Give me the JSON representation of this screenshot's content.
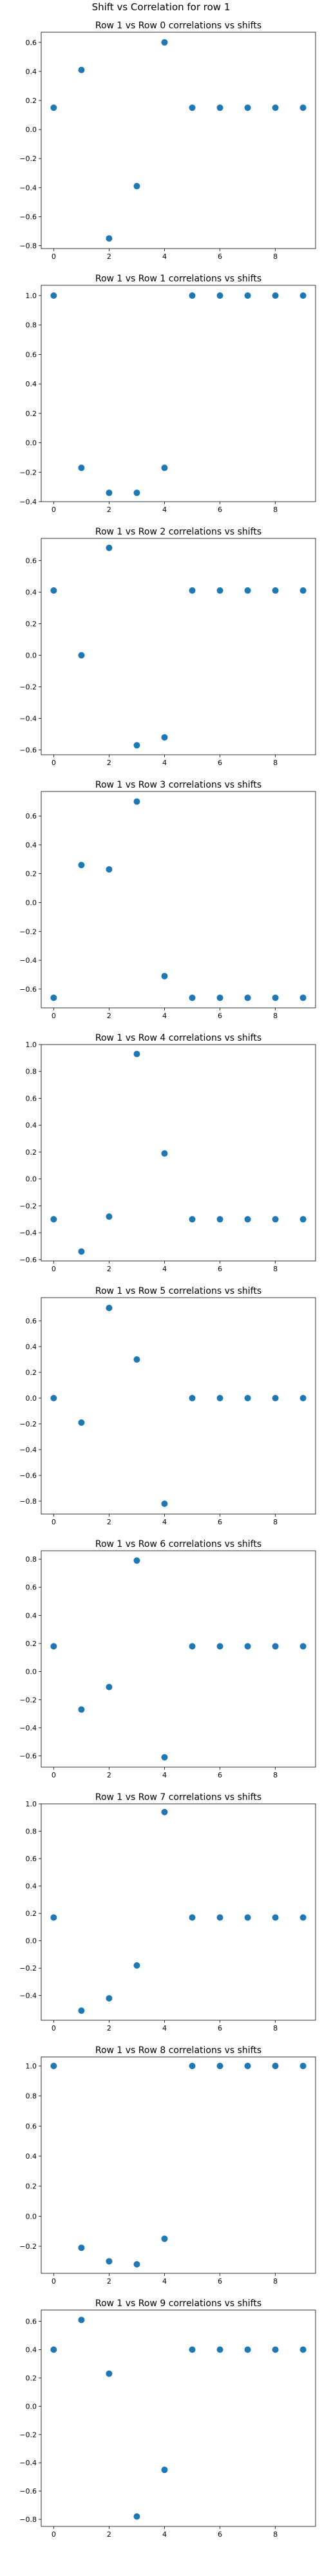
{
  "figure": {
    "suptitle": "Shift vs Correlation for row 1",
    "point_color": "#1f77b4"
  },
  "chart_data": [
    {
      "type": "scatter",
      "title": "Row 1 vs Row 0 correlations vs shifts",
      "x": [
        0,
        1,
        2,
        3,
        4,
        5,
        6,
        7,
        8,
        9
      ],
      "y": [
        0.15,
        0.41,
        -0.75,
        -0.39,
        0.6,
        0.15,
        0.15,
        0.15,
        0.15,
        0.15
      ],
      "xlim": [
        -0.45,
        9.45
      ],
      "ylim": [
        -0.82,
        0.67
      ],
      "xticks": [
        0,
        2,
        4,
        6,
        8
      ],
      "yticks": [
        -0.8,
        -0.6,
        -0.4,
        -0.2,
        0.0,
        0.2,
        0.4,
        0.6
      ],
      "tick_decimals": 1
    },
    {
      "type": "scatter",
      "title": "Row 1 vs Row 1 correlations vs shifts",
      "x": [
        0,
        1,
        2,
        3,
        4,
        5,
        6,
        7,
        8,
        9
      ],
      "y": [
        1.0,
        -0.17,
        -0.34,
        -0.34,
        -0.17,
        1.0,
        1.0,
        1.0,
        1.0,
        1.0
      ],
      "xlim": [
        -0.45,
        9.45
      ],
      "ylim": [
        -0.4,
        1.07
      ],
      "xticks": [
        0,
        2,
        4,
        6,
        8
      ],
      "yticks": [
        -0.4,
        -0.2,
        0.0,
        0.2,
        0.4,
        0.6,
        0.8,
        1.0
      ],
      "tick_decimals": 1
    },
    {
      "type": "scatter",
      "title": "Row 1 vs Row 2 correlations vs shifts",
      "x": [
        0,
        1,
        2,
        3,
        4,
        5,
        6,
        7,
        8,
        9
      ],
      "y": [
        0.41,
        0.0,
        0.68,
        -0.57,
        -0.52,
        0.41,
        0.41,
        0.41,
        0.41,
        0.41
      ],
      "xlim": [
        -0.45,
        9.45
      ],
      "ylim": [
        -0.63,
        0.74
      ],
      "xticks": [
        0,
        2,
        4,
        6,
        8
      ],
      "yticks": [
        -0.6,
        -0.4,
        -0.2,
        0.0,
        0.2,
        0.4,
        0.6
      ],
      "tick_decimals": 1
    },
    {
      "type": "scatter",
      "title": "Row 1 vs Row 3 correlations vs shifts",
      "x": [
        0,
        1,
        2,
        3,
        4,
        5,
        6,
        7,
        8,
        9
      ],
      "y": [
        -0.66,
        0.26,
        0.23,
        0.7,
        -0.51,
        -0.66,
        -0.66,
        -0.66,
        -0.66,
        -0.66
      ],
      "xlim": [
        -0.45,
        9.45
      ],
      "ylim": [
        -0.73,
        0.77
      ],
      "xticks": [
        0,
        2,
        4,
        6,
        8
      ],
      "yticks": [
        -0.6,
        -0.4,
        -0.2,
        0.0,
        0.2,
        0.4,
        0.6
      ],
      "tick_decimals": 1
    },
    {
      "type": "scatter",
      "title": "Row 1 vs Row 4 correlations vs shifts",
      "x": [
        0,
        1,
        2,
        3,
        4,
        5,
        6,
        7,
        8,
        9
      ],
      "y": [
        -0.3,
        -0.54,
        -0.28,
        0.93,
        0.19,
        -0.3,
        -0.3,
        -0.3,
        -0.3,
        -0.3
      ],
      "xlim": [
        -0.45,
        9.45
      ],
      "ylim": [
        -0.61,
        1.0
      ],
      "xticks": [
        0,
        2,
        4,
        6,
        8
      ],
      "yticks": [
        -0.6,
        -0.4,
        -0.2,
        0.0,
        0.2,
        0.4,
        0.6,
        0.8,
        1.0
      ],
      "tick_decimals": 1
    },
    {
      "type": "scatter",
      "title": "Row 1 vs Row 5 correlations vs shifts",
      "x": [
        0,
        1,
        2,
        3,
        4,
        5,
        6,
        7,
        8,
        9
      ],
      "y": [
        0.0,
        -0.19,
        0.7,
        0.3,
        -0.82,
        0.0,
        0.0,
        0.0,
        0.0,
        0.0
      ],
      "xlim": [
        -0.45,
        9.45
      ],
      "ylim": [
        -0.9,
        0.78
      ],
      "xticks": [
        0,
        2,
        4,
        6,
        8
      ],
      "yticks": [
        -0.8,
        -0.6,
        -0.4,
        -0.2,
        0.0,
        0.2,
        0.4,
        0.6
      ],
      "tick_decimals": 1
    },
    {
      "type": "scatter",
      "title": "Row 1 vs Row 6 correlations vs shifts",
      "x": [
        0,
        1,
        2,
        3,
        4,
        5,
        6,
        7,
        8,
        9
      ],
      "y": [
        0.18,
        -0.27,
        -0.11,
        0.79,
        -0.61,
        0.18,
        0.18,
        0.18,
        0.18,
        0.18
      ],
      "xlim": [
        -0.45,
        9.45
      ],
      "ylim": [
        -0.68,
        0.86
      ],
      "xticks": [
        0,
        2,
        4,
        6,
        8
      ],
      "yticks": [
        -0.6,
        -0.4,
        -0.2,
        0.0,
        0.2,
        0.4,
        0.6,
        0.8
      ],
      "tick_decimals": 1
    },
    {
      "type": "scatter",
      "title": "Row 1 vs Row 7 correlations vs shifts",
      "x": [
        0,
        1,
        2,
        3,
        4,
        5,
        6,
        7,
        8,
        9
      ],
      "y": [
        0.17,
        -0.51,
        -0.42,
        -0.18,
        0.94,
        0.17,
        0.17,
        0.17,
        0.17,
        0.17
      ],
      "xlim": [
        -0.45,
        9.45
      ],
      "ylim": [
        -0.58,
        1.0
      ],
      "xticks": [
        0,
        2,
        4,
        6,
        8
      ],
      "yticks": [
        -0.4,
        -0.2,
        0.0,
        0.2,
        0.4,
        0.6,
        0.8,
        1.0
      ],
      "tick_decimals": 1
    },
    {
      "type": "scatter",
      "title": "Row 1 vs Row 8 correlations vs shifts",
      "x": [
        0,
        1,
        2,
        3,
        4,
        5,
        6,
        7,
        8,
        9
      ],
      "y": [
        1.0,
        -0.21,
        -0.3,
        -0.32,
        -0.15,
        1.0,
        1.0,
        1.0,
        1.0,
        1.0
      ],
      "xlim": [
        -0.45,
        9.45
      ],
      "ylim": [
        -0.38,
        1.06
      ],
      "xticks": [
        0,
        2,
        4,
        6,
        8
      ],
      "yticks": [
        -0.2,
        0.0,
        0.2,
        0.4,
        0.6,
        0.8,
        1.0
      ],
      "tick_decimals": 1
    },
    {
      "type": "scatter",
      "title": "Row 1 vs Row 9 correlations vs shifts",
      "x": [
        0,
        1,
        2,
        3,
        4,
        5,
        6,
        7,
        8,
        9
      ],
      "y": [
        0.4,
        0.61,
        0.23,
        -0.78,
        -0.45,
        0.4,
        0.4,
        0.4,
        0.4,
        0.4
      ],
      "xlim": [
        -0.45,
        9.45
      ],
      "ylim": [
        -0.85,
        0.68
      ],
      "xticks": [
        0,
        2,
        4,
        6,
        8
      ],
      "yticks": [
        -0.8,
        -0.6,
        -0.4,
        -0.2,
        0.0,
        0.2,
        0.4,
        0.6
      ],
      "tick_decimals": 1
    }
  ]
}
